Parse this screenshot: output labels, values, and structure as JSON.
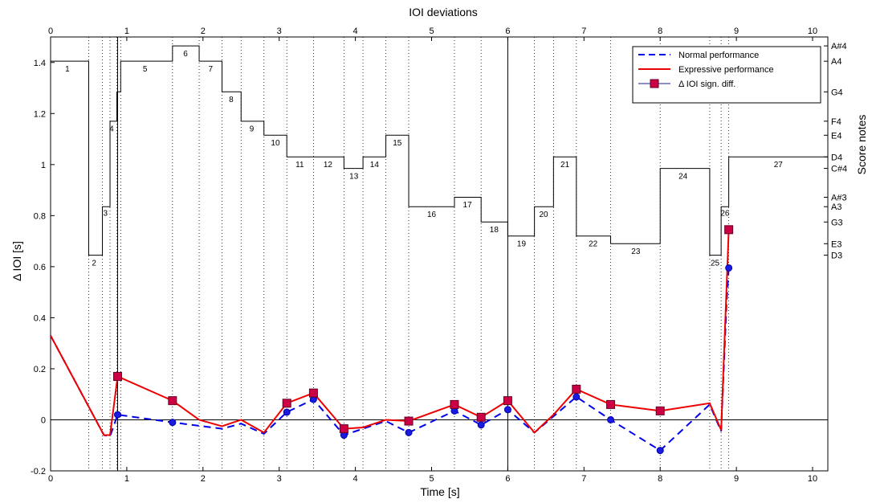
{
  "chart_data": {
    "type": "line",
    "title": "IOI deviations",
    "xlabel": "Time [s]",
    "ylabel": "Δ IOI [s]",
    "y2label": "Score notes",
    "xlim": [
      0,
      10.2
    ],
    "ylim": [
      -0.2,
      1.5
    ],
    "xticks": [
      0,
      1,
      2,
      3,
      4,
      5,
      6,
      7,
      8,
      9,
      10
    ],
    "yticks": [
      -0.2,
      0,
      0.2,
      0.4,
      0.6,
      0.8,
      1,
      1.2,
      1.4
    ],
    "ytick_labels": [
      "-0.2",
      "0",
      "0.2",
      "0.4",
      "0.6",
      "0.8",
      "1",
      "1.2",
      "1.4"
    ],
    "grid": false,
    "legend_position": "top-right",
    "score_notes": [
      {
        "label": "A#4",
        "y": 1.465
      },
      {
        "label": "A4",
        "y": 1.405
      },
      {
        "label": "G4",
        "y": 1.285
      },
      {
        "label": "F4",
        "y": 1.17
      },
      {
        "label": "E4",
        "y": 1.115
      },
      {
        "label": "D4",
        "y": 1.03
      },
      {
        "label": "C#4",
        "y": 0.985
      },
      {
        "label": "A#3",
        "y": 0.872
      },
      {
        "label": "A3",
        "y": 0.835
      },
      {
        "label": "G3",
        "y": 0.775
      },
      {
        "label": "E3",
        "y": 0.69
      },
      {
        "label": "D3",
        "y": 0.645
      }
    ],
    "note_onsets": [
      0,
      0.5,
      0.68,
      0.78,
      0.87,
      0.92,
      1.6,
      1.95,
      2.25,
      2.5,
      2.8,
      3.1,
      3.45,
      3.85,
      4.1,
      4.4,
      4.7,
      5.3,
      5.65,
      6.0,
      6.35,
      6.6,
      6.9,
      7.35,
      8.0,
      8.65,
      8.8,
      8.9,
      10.2
    ],
    "note_pitches": [
      1.405,
      0.645,
      0.835,
      1.17,
      1.285,
      1.405,
      1.465,
      1.405,
      1.285,
      1.17,
      1.115,
      1.03,
      1.03,
      0.985,
      1.03,
      1.115,
      0.835,
      0.872,
      0.775,
      0.72,
      0.835,
      1.03,
      0.72,
      0.69,
      0.985,
      0.645,
      0.835,
      1.03
    ],
    "note_labels": [
      {
        "n": "1",
        "x": 0.22,
        "y": 1.365
      },
      {
        "n": "2",
        "x": 0.57,
        "y": 0.605
      },
      {
        "n": "3",
        "x": 0.72,
        "y": 0.8
      },
      {
        "n": "4",
        "x": 0.8,
        "y": 1.13
      },
      {
        "n": "5",
        "x": 1.24,
        "y": 1.365
      },
      {
        "n": "6",
        "x": 1.77,
        "y": 1.425
      },
      {
        "n": "7",
        "x": 2.1,
        "y": 1.365
      },
      {
        "n": "8",
        "x": 2.37,
        "y": 1.245
      },
      {
        "n": "9",
        "x": 2.64,
        "y": 1.13
      },
      {
        "n": "10",
        "x": 2.95,
        "y": 1.075
      },
      {
        "n": "11",
        "x": 3.27,
        "y": 0.99
      },
      {
        "n": "12",
        "x": 3.64,
        "y": 0.99
      },
      {
        "n": "13",
        "x": 3.98,
        "y": 0.945
      },
      {
        "n": "14",
        "x": 4.25,
        "y": 0.99
      },
      {
        "n": "15",
        "x": 4.55,
        "y": 1.075
      },
      {
        "n": "16",
        "x": 5.0,
        "y": 0.795
      },
      {
        "n": "17",
        "x": 5.47,
        "y": 0.832
      },
      {
        "n": "18",
        "x": 5.82,
        "y": 0.735
      },
      {
        "n": "19",
        "x": 6.18,
        "y": 0.68
      },
      {
        "n": "20",
        "x": 6.47,
        "y": 0.795
      },
      {
        "n": "21",
        "x": 6.75,
        "y": 0.99
      },
      {
        "n": "22",
        "x": 7.12,
        "y": 0.68
      },
      {
        "n": "23",
        "x": 7.68,
        "y": 0.65
      },
      {
        "n": "24",
        "x": 8.3,
        "y": 0.945
      },
      {
        "n": "25",
        "x": 8.72,
        "y": 0.605
      },
      {
        "n": "26",
        "x": 8.85,
        "y": 0.8
      },
      {
        "n": "27",
        "x": 9.55,
        "y": 0.99
      }
    ],
    "series": [
      {
        "name": "Normal performance",
        "style": "dashed",
        "color": "#0000ee",
        "x": [
          0,
          0.7,
          0.78,
          0.88,
          1.6,
          2.25,
          2.5,
          2.8,
          3.1,
          3.45,
          3.85,
          4.4,
          4.7,
          5.3,
          5.65,
          6.0,
          6.35,
          6.9,
          7.35,
          8.0,
          8.65,
          8.8,
          8.87,
          8.9
        ],
        "y": [
          0.33,
          -0.06,
          -0.065,
          0.02,
          -0.01,
          -0.035,
          -0.015,
          -0.055,
          0.03,
          0.08,
          -0.06,
          -0.005,
          -0.05,
          0.035,
          -0.02,
          0.04,
          -0.05,
          0.09,
          0.0,
          -0.12,
          0.06,
          -0.045,
          0.45,
          0.595
        ]
      },
      {
        "name": "Expressive performance",
        "style": "solid",
        "color": "#ee0000",
        "x": [
          0,
          0.7,
          0.78,
          0.88,
          1.6,
          1.95,
          2.25,
          2.5,
          2.8,
          3.1,
          3.45,
          3.85,
          4.1,
          4.4,
          4.7,
          5.3,
          5.65,
          6.0,
          6.35,
          6.6,
          6.9,
          7.35,
          8.0,
          8.65,
          8.8,
          8.9
        ],
        "y": [
          0.33,
          -0.06,
          -0.06,
          0.17,
          0.075,
          0.0,
          -0.025,
          0.0,
          -0.05,
          0.065,
          0.105,
          -0.035,
          -0.03,
          0.0,
          -0.005,
          0.06,
          0.01,
          0.075,
          -0.05,
          0.02,
          0.12,
          0.06,
          0.035,
          0.065,
          -0.04,
          0.745
        ]
      },
      {
        "name": "Δ IOI sign. diff.",
        "style": "markers",
        "color": "#cc0044",
        "x": [
          0.88,
          1.6,
          3.1,
          3.45,
          3.85,
          4.7,
          5.3,
          5.65,
          6.0,
          6.9,
          7.35,
          8.0,
          8.9
        ],
        "y": [
          0.17,
          0.075,
          0.065,
          0.105,
          -0.035,
          -0.005,
          0.06,
          0.01,
          0.075,
          0.12,
          0.06,
          0.035,
          0.745
        ]
      }
    ],
    "blue_dots": {
      "x": [
        0.88,
        1.6,
        3.1,
        3.45,
        3.85,
        4.7,
        5.3,
        5.65,
        6.0,
        6.9,
        7.35,
        8.0,
        8.9
      ],
      "y": [
        0.02,
        -0.01,
        0.03,
        0.08,
        -0.06,
        -0.05,
        0.035,
        -0.02,
        0.04,
        0.09,
        0.0,
        -0.12,
        0.595
      ]
    },
    "reference_lines_x": [
      0.88,
      6.0
    ]
  }
}
